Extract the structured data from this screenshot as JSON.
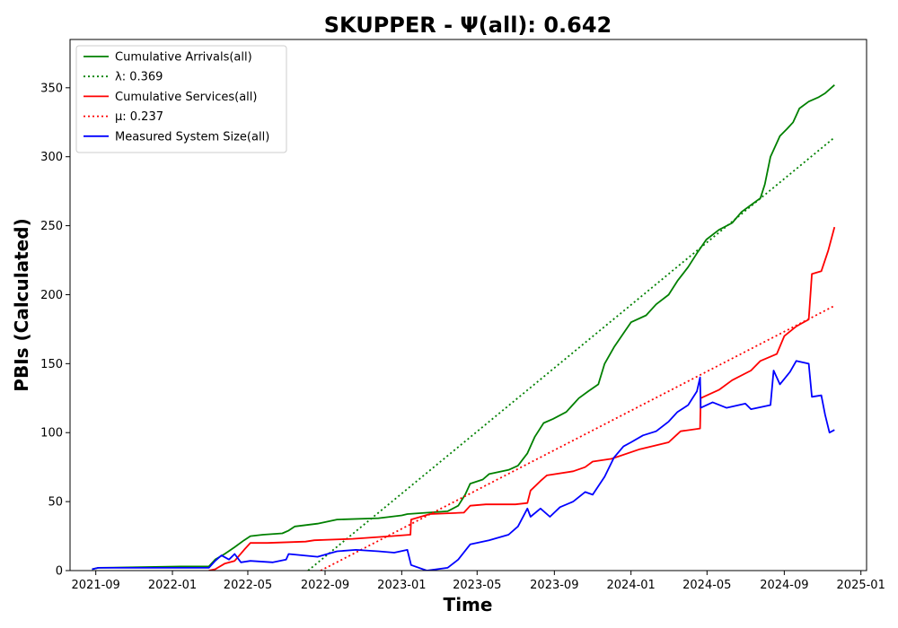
{
  "chart_data": {
    "type": "line",
    "title": "SKUPPER -  Ψ(all): 0.642",
    "xlabel": "Time",
    "ylabel": "PBIs (Calculated)",
    "xlim": [
      "2021-07-22",
      "2025-01-10"
    ],
    "ylim": [
      0,
      385
    ],
    "xticks": [
      "2021-09",
      "2022-01",
      "2022-05",
      "2022-09",
      "2023-01",
      "2023-05",
      "2023-09",
      "2024-01",
      "2024-05",
      "2024-09",
      "2025-01"
    ],
    "yticks": [
      0,
      50,
      100,
      150,
      200,
      250,
      300,
      350
    ],
    "grid": false,
    "legend_position": "top-left",
    "series": [
      {
        "name": "Cumulative Arrivals(all)",
        "style": "solid",
        "color": "#008000",
        "points": [
          [
            "2021-08-26",
            1
          ],
          [
            "2021-09-05",
            2
          ],
          [
            "2022-01-15",
            3
          ],
          [
            "2022-02-28",
            3
          ],
          [
            "2022-03-10",
            8
          ],
          [
            "2022-03-25",
            12
          ],
          [
            "2022-04-10",
            17
          ],
          [
            "2022-04-25",
            22
          ],
          [
            "2022-05-05",
            25
          ],
          [
            "2022-05-25",
            26
          ],
          [
            "2022-06-25",
            27
          ],
          [
            "2022-07-05",
            29
          ],
          [
            "2022-07-15",
            32
          ],
          [
            "2022-08-20",
            34
          ],
          [
            "2022-09-20",
            37
          ],
          [
            "2022-11-25",
            38
          ],
          [
            "2023-01-01",
            40
          ],
          [
            "2023-01-10",
            41
          ],
          [
            "2023-03-15",
            43
          ],
          [
            "2023-04-01",
            47
          ],
          [
            "2023-04-12",
            55
          ],
          [
            "2023-04-20",
            63
          ],
          [
            "2023-05-10",
            66
          ],
          [
            "2023-05-20",
            70
          ],
          [
            "2023-06-20",
            73
          ],
          [
            "2023-07-05",
            76
          ],
          [
            "2023-07-20",
            85
          ],
          [
            "2023-08-01",
            97
          ],
          [
            "2023-08-15",
            107
          ],
          [
            "2023-08-30",
            110
          ],
          [
            "2023-09-20",
            115
          ],
          [
            "2023-10-10",
            125
          ],
          [
            "2023-10-25",
            130
          ],
          [
            "2023-11-10",
            135
          ],
          [
            "2023-11-20",
            150
          ],
          [
            "2023-12-05",
            162
          ],
          [
            "2023-12-20",
            172
          ],
          [
            "2024-01-01",
            180
          ],
          [
            "2024-01-25",
            185
          ],
          [
            "2024-02-10",
            193
          ],
          [
            "2024-03-01",
            200
          ],
          [
            "2024-03-15",
            210
          ],
          [
            "2024-04-01",
            220
          ],
          [
            "2024-04-15",
            230
          ],
          [
            "2024-04-30",
            240
          ],
          [
            "2024-05-20",
            247
          ],
          [
            "2024-06-10",
            252
          ],
          [
            "2024-06-25",
            260
          ],
          [
            "2024-07-10",
            265
          ],
          [
            "2024-07-25",
            270
          ],
          [
            "2024-08-01",
            280
          ],
          [
            "2024-08-10",
            300
          ],
          [
            "2024-08-25",
            315
          ],
          [
            "2024-09-05",
            320
          ],
          [
            "2024-09-15",
            325
          ],
          [
            "2024-09-25",
            335
          ],
          [
            "2024-10-10",
            340
          ],
          [
            "2024-10-25",
            343
          ],
          [
            "2024-11-05",
            346
          ],
          [
            "2024-11-20",
            352
          ]
        ]
      },
      {
        "name": "λ: 0.369",
        "style": "dotted",
        "color": "#008000",
        "points": [
          [
            "2022-08-05",
            0
          ],
          [
            "2024-11-20",
            314
          ]
        ]
      },
      {
        "name": "Cumulative Services(all)",
        "style": "solid",
        "color": "#ff0000",
        "points": [
          [
            "2022-02-28",
            0
          ],
          [
            "2022-03-10",
            1
          ],
          [
            "2022-03-25",
            5
          ],
          [
            "2022-04-10",
            7
          ],
          [
            "2022-04-25",
            15
          ],
          [
            "2022-05-05",
            20
          ],
          [
            "2022-06-01",
            20
          ],
          [
            "2022-08-01",
            21
          ],
          [
            "2022-08-15",
            22
          ],
          [
            "2022-10-15",
            23
          ],
          [
            "2022-12-15",
            25
          ],
          [
            "2023-01-15",
            26
          ],
          [
            "2023-01-16",
            37
          ],
          [
            "2023-02-15",
            41
          ],
          [
            "2023-04-10",
            42
          ],
          [
            "2023-04-20",
            47
          ],
          [
            "2023-05-15",
            48
          ],
          [
            "2023-07-01",
            48
          ],
          [
            "2023-07-20",
            49
          ],
          [
            "2023-07-25",
            58
          ],
          [
            "2023-08-10",
            65
          ],
          [
            "2023-08-20",
            69
          ],
          [
            "2023-10-01",
            72
          ],
          [
            "2023-10-20",
            75
          ],
          [
            "2023-11-01",
            79
          ],
          [
            "2023-12-01",
            81
          ],
          [
            "2024-01-15",
            88
          ],
          [
            "2024-03-01",
            93
          ],
          [
            "2024-03-20",
            101
          ],
          [
            "2024-04-20",
            103
          ],
          [
            "2024-04-21",
            125
          ],
          [
            "2024-05-20",
            131
          ],
          [
            "2024-06-10",
            138
          ],
          [
            "2024-07-10",
            145
          ],
          [
            "2024-07-25",
            152
          ],
          [
            "2024-08-20",
            157
          ],
          [
            "2024-09-01",
            170
          ],
          [
            "2024-09-20",
            177
          ],
          [
            "2024-10-10",
            182
          ],
          [
            "2024-10-15",
            215
          ],
          [
            "2024-10-30",
            217
          ],
          [
            "2024-11-10",
            232
          ],
          [
            "2024-11-20",
            249
          ]
        ]
      },
      {
        "name": "μ: 0.237",
        "style": "dotted",
        "color": "#ff0000",
        "points": [
          [
            "2022-08-25",
            0
          ],
          [
            "2024-11-20",
            192
          ]
        ]
      },
      {
        "name": "Measured System Size(all)",
        "style": "solid",
        "color": "#0000ff",
        "points": [
          [
            "2021-08-26",
            1
          ],
          [
            "2021-09-05",
            2
          ],
          [
            "2022-02-28",
            2
          ],
          [
            "2022-03-10",
            7
          ],
          [
            "2022-03-20",
            11
          ],
          [
            "2022-04-01",
            8
          ],
          [
            "2022-04-10",
            12
          ],
          [
            "2022-04-20",
            6
          ],
          [
            "2022-05-05",
            7
          ],
          [
            "2022-06-10",
            6
          ],
          [
            "2022-07-01",
            8
          ],
          [
            "2022-07-05",
            12
          ],
          [
            "2022-08-20",
            10
          ],
          [
            "2022-09-20",
            14
          ],
          [
            "2022-10-20",
            15
          ],
          [
            "2022-11-25",
            14
          ],
          [
            "2022-12-20",
            13
          ],
          [
            "2023-01-10",
            15
          ],
          [
            "2023-01-16",
            4
          ],
          [
            "2023-02-10",
            0
          ],
          [
            "2023-03-15",
            2
          ],
          [
            "2023-04-01",
            8
          ],
          [
            "2023-04-20",
            19
          ],
          [
            "2023-05-20",
            22
          ],
          [
            "2023-06-20",
            26
          ],
          [
            "2023-07-05",
            32
          ],
          [
            "2023-07-20",
            45
          ],
          [
            "2023-07-25",
            39
          ],
          [
            "2023-08-10",
            45
          ],
          [
            "2023-08-25",
            39
          ],
          [
            "2023-09-10",
            46
          ],
          [
            "2023-10-01",
            50
          ],
          [
            "2023-10-20",
            57
          ],
          [
            "2023-11-01",
            55
          ],
          [
            "2023-11-20",
            68
          ],
          [
            "2023-12-05",
            82
          ],
          [
            "2023-12-20",
            90
          ],
          [
            "2024-01-01",
            93
          ],
          [
            "2024-01-20",
            98
          ],
          [
            "2024-02-10",
            101
          ],
          [
            "2024-03-01",
            108
          ],
          [
            "2024-03-15",
            115
          ],
          [
            "2024-04-01",
            120
          ],
          [
            "2024-04-15",
            130
          ],
          [
            "2024-04-20",
            140
          ],
          [
            "2024-04-21",
            118
          ],
          [
            "2024-05-10",
            122
          ],
          [
            "2024-06-01",
            118
          ],
          [
            "2024-07-01",
            121
          ],
          [
            "2024-07-10",
            117
          ],
          [
            "2024-08-10",
            120
          ],
          [
            "2024-08-15",
            145
          ],
          [
            "2024-08-25",
            135
          ],
          [
            "2024-09-10",
            144
          ],
          [
            "2024-09-20",
            152
          ],
          [
            "2024-10-10",
            150
          ],
          [
            "2024-10-15",
            126
          ],
          [
            "2024-10-30",
            127
          ],
          [
            "2024-11-05",
            113
          ],
          [
            "2024-11-12",
            100
          ],
          [
            "2024-11-20",
            102
          ]
        ]
      }
    ]
  }
}
